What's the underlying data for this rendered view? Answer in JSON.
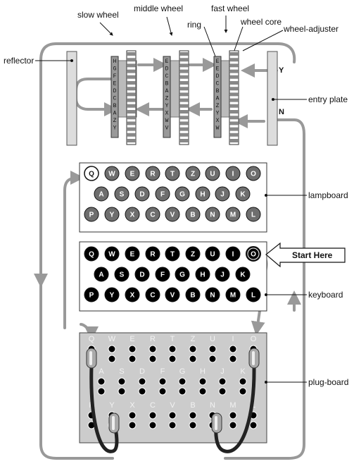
{
  "labels": {
    "slow_wheel": "slow wheel",
    "middle_wheel": "middle wheel",
    "fast_wheel": "fast wheel",
    "ring": "ring",
    "wheel_core": "wheel core",
    "wheel_adjuster": "wheel-adjuster",
    "reflector": "reflector",
    "entry_plate": "entry plate",
    "lampboard": "lampboard",
    "keyboard": "keyboard",
    "plug_board": "plug-board",
    "start_here": "Start Here",
    "entry_y": "Y",
    "entry_n": "N"
  },
  "keyboard_rows": [
    [
      "Q",
      "W",
      "E",
      "R",
      "T",
      "Z",
      "U",
      "I",
      "O"
    ],
    [
      "A",
      "S",
      "D",
      "F",
      "G",
      "H",
      "J",
      "K"
    ],
    [
      "P",
      "Y",
      "X",
      "C",
      "V",
      "B",
      "N",
      "M",
      "L"
    ]
  ],
  "lampboard": {
    "lit_letter": "Q"
  },
  "keyboard": {
    "pressed_letter": "O"
  },
  "wheel_rims": {
    "slow": [
      "H",
      "G",
      "F",
      "E",
      "D",
      "C",
      "B",
      "A",
      "Z",
      "Y"
    ],
    "middle": [
      "E",
      "D",
      "C",
      "B",
      "A",
      "Z",
      "Y",
      "X",
      "W",
      "V"
    ],
    "fast": [
      "E",
      "E",
      "D",
      "C",
      "B",
      "A",
      "Z",
      "Y",
      "X",
      "W"
    ]
  },
  "colors": {
    "path": "#999999",
    "key_fill": "#000000",
    "lamp_fill": "#6e6e6e",
    "plugboard_bg": "#cccccc",
    "cable": "#222222",
    "plug": "#aaaaaa"
  }
}
